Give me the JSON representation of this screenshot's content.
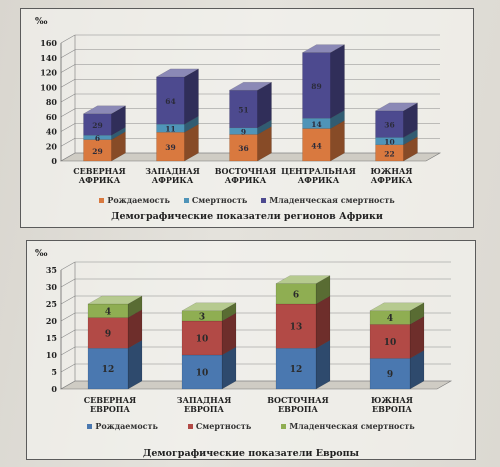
{
  "chart_data": [
    {
      "type": "bar",
      "stacked": true,
      "unit": "‰",
      "title": "Демографические показатели регионов Африки",
      "categories": [
        "СЕВЕРНАЯ АФРИКА",
        "ЗАПАДНАЯ АФРИКА",
        "ВОСТОЧНАЯ АФРИКА",
        "ЦЕНТРАЛЬНАЯ АФРИКА",
        "ЮЖНАЯ АФРИКА"
      ],
      "series": [
        {
          "name": "Рождаемость",
          "color": "#d9793f",
          "values": [
            29,
            39,
            36,
            44,
            22
          ]
        },
        {
          "name": "Смертность",
          "color": "#4f94b8",
          "values": [
            6,
            11,
            9,
            14,
            10
          ]
        },
        {
          "name": "Младенческая смертность",
          "color": "#4d4a8f",
          "values": [
            29,
            64,
            51,
            89,
            36
          ]
        }
      ],
      "ylim": [
        0,
        160
      ],
      "yticks": [
        0,
        20,
        40,
        60,
        80,
        100,
        120,
        140,
        160
      ],
      "legend_position": "bottom",
      "grid": true
    },
    {
      "type": "bar",
      "stacked": true,
      "unit": "‰",
      "title": "Демографические показатели Европы",
      "categories": [
        "СЕВЕРНАЯ ЕВРОПА",
        "ЗАПАДНАЯ ЕВРОПА",
        "ВОСТОЧНАЯ ЕВРОПА",
        "ЮЖНАЯ ЕВРОПА"
      ],
      "series": [
        {
          "name": "Рождаемость",
          "color": "#4a78b0",
          "values": [
            12,
            10,
            12,
            9
          ]
        },
        {
          "name": "Смертность",
          "color": "#b24a46",
          "values": [
            9,
            10,
            13,
            10
          ]
        },
        {
          "name": "Младенческая смертность",
          "color": "#8fae52",
          "values": [
            4,
            3,
            6,
            4
          ]
        }
      ],
      "ylim": [
        0,
        35
      ],
      "yticks": [
        0,
        5,
        10,
        15,
        20,
        25,
        30,
        35
      ],
      "legend_position": "bottom",
      "grid": true
    }
  ]
}
